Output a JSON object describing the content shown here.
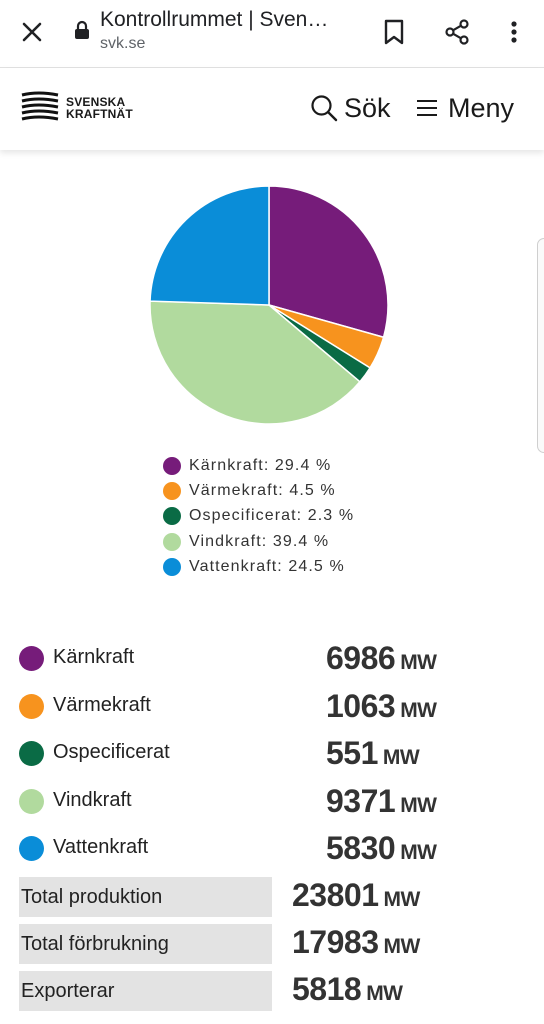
{
  "browser": {
    "title": "Kontrollrummet | Sven…",
    "host": "svk.se"
  },
  "header": {
    "logo_line1": "SVENSKA",
    "logo_line2": "KRAFTNÄT",
    "search_label": "Sök",
    "menu_label": "Meny"
  },
  "chart_data": {
    "type": "pie",
    "categories": [
      "Kärnkraft",
      "Värmekraft",
      "Ospecificerat",
      "Vindkraft",
      "Vattenkraft"
    ],
    "values": [
      29.4,
      4.5,
      2.3,
      39.4,
      24.5
    ],
    "colors": [
      "#761C7A",
      "#F7931E",
      "#0A6B45",
      "#B1DA9E",
      "#0A8DD8"
    ],
    "legend": [
      "Kärnkraft: 29.4 %",
      "Värmekraft: 4.5 %",
      "Ospecificerat: 2.3 %",
      "Vindkraft: 39.4 %",
      "Vattenkraft: 24.5 %"
    ],
    "legend_placement": "bottom"
  },
  "production": [
    {
      "label": "Kärnkraft",
      "value": "6986",
      "unit": "MW",
      "color": "#761C7A"
    },
    {
      "label": "Värmekraft",
      "value": "1063",
      "unit": "MW",
      "color": "#F7931E"
    },
    {
      "label": "Ospecificerat",
      "value": "551",
      "unit": "MW",
      "color": "#0A6B45"
    },
    {
      "label": "Vindkraft",
      "value": "9371",
      "unit": "MW",
      "color": "#B1DA9E"
    },
    {
      "label": "Vattenkraft",
      "value": "5830",
      "unit": "MW",
      "color": "#0A8DD8"
    }
  ],
  "totals": [
    {
      "label": "Total produktion",
      "value": "23801",
      "unit": "MW"
    },
    {
      "label": "Total förbrukning",
      "value": "17983",
      "unit": "MW"
    },
    {
      "label": "Exporterar",
      "value": "5818",
      "unit": "MW"
    }
  ]
}
